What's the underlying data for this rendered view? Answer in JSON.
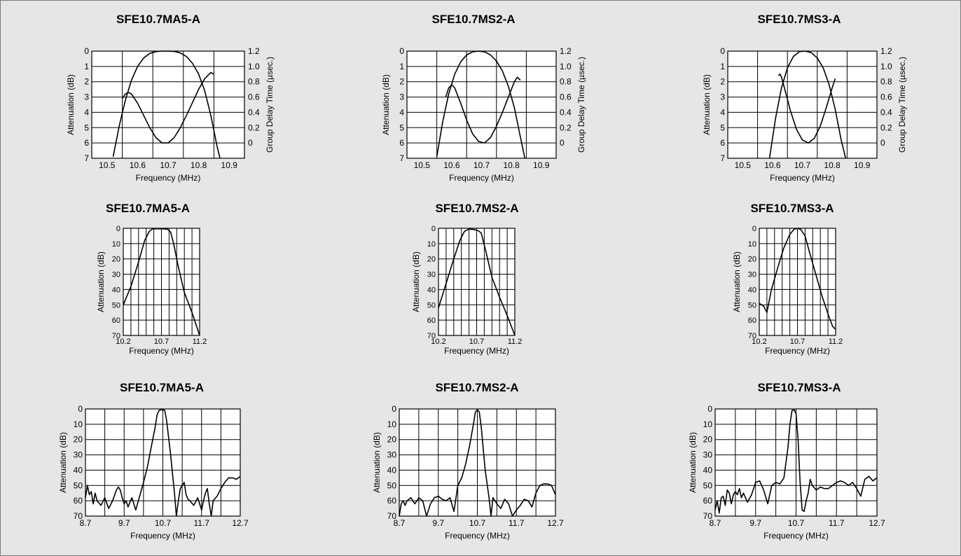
{
  "chart_data": [
    {
      "type": "line",
      "title": "SFE10.7MA5-A",
      "xlabel": "Frequency (MHz)",
      "ylabel": "Attenuation (dB)",
      "y2label": "Group Delay Time (µsec.)",
      "xlim": [
        10.45,
        10.95
      ],
      "ylim": [
        0,
        7
      ],
      "y2lim": [
        -0.2,
        1.2
      ],
      "xticks": [
        10.5,
        10.6,
        10.7,
        10.8,
        10.9
      ],
      "yticks": [
        0,
        1,
        2,
        3,
        4,
        5,
        6,
        7
      ],
      "y2ticks": [
        1.2,
        1.0,
        0.8,
        0.6,
        0.4,
        0.2,
        0
      ],
      "grid": true,
      "series": [
        {
          "axis": "y",
          "x": [
            10.52,
            10.54,
            10.56,
            10.58,
            10.6,
            10.62,
            10.64,
            10.66,
            10.68,
            10.7,
            10.72,
            10.74,
            10.76,
            10.78,
            10.8,
            10.82,
            10.84,
            10.86,
            10.87
          ],
          "y": [
            6.9,
            4.9,
            3.2,
            1.9,
            1.0,
            0.45,
            0.15,
            0.03,
            0.0,
            0.0,
            0.02,
            0.12,
            0.35,
            0.8,
            1.5,
            2.6,
            4.2,
            6.2,
            7.0
          ]
        },
        {
          "axis": "y2",
          "x": [
            10.55,
            10.56,
            10.57,
            10.58,
            10.6,
            10.62,
            10.64,
            10.66,
            10.68,
            10.7,
            10.72,
            10.74,
            10.76,
            10.78,
            10.8,
            10.82,
            10.84,
            10.85
          ],
          "y": [
            0.58,
            0.64,
            0.66,
            0.64,
            0.52,
            0.36,
            0.2,
            0.07,
            0.0,
            0.0,
            0.07,
            0.2,
            0.36,
            0.53,
            0.7,
            0.84,
            0.92,
            0.9
          ]
        }
      ]
    },
    {
      "type": "line",
      "title": "SFE10.7MS2-A",
      "xlabel": "Frequency (MHz)",
      "ylabel": "Attenuation (dB)",
      "y2label": "Group Delay Time (µsec.)",
      "xlim": [
        10.45,
        10.95
      ],
      "ylim": [
        0,
        7
      ],
      "y2lim": [
        -0.2,
        1.2
      ],
      "xticks": [
        10.5,
        10.6,
        10.7,
        10.8,
        10.9
      ],
      "yticks": [
        0,
        1,
        2,
        3,
        4,
        5,
        6,
        7
      ],
      "y2ticks": [
        1.2,
        1.0,
        0.8,
        0.6,
        0.4,
        0.2,
        0
      ],
      "grid": true,
      "series": [
        {
          "axis": "y",
          "x": [
            10.55,
            10.57,
            10.59,
            10.61,
            10.63,
            10.65,
            10.67,
            10.69,
            10.71,
            10.73,
            10.75,
            10.77,
            10.79,
            10.81,
            10.83,
            10.845
          ],
          "y": [
            6.9,
            4.6,
            2.8,
            1.5,
            0.7,
            0.25,
            0.05,
            0.0,
            0.05,
            0.25,
            0.65,
            1.3,
            2.3,
            3.7,
            5.6,
            7.0
          ]
        },
        {
          "axis": "y2",
          "x": [
            10.58,
            10.59,
            10.6,
            10.61,
            10.63,
            10.65,
            10.67,
            10.69,
            10.71,
            10.73,
            10.75,
            10.77,
            10.79,
            10.81,
            10.82,
            10.83
          ],
          "y": [
            0.6,
            0.72,
            0.76,
            0.72,
            0.52,
            0.3,
            0.12,
            0.02,
            0.0,
            0.07,
            0.22,
            0.4,
            0.6,
            0.8,
            0.86,
            0.82
          ]
        }
      ]
    },
    {
      "type": "line",
      "title": "SFE10.7MS3-A",
      "xlabel": "Frequency (MHz)",
      "ylabel": "Attenuation (dB)",
      "y2label": "Group Delay Time (µsec.)",
      "xlim": [
        10.45,
        10.95
      ],
      "ylim": [
        0,
        7
      ],
      "y2lim": [
        -0.2,
        1.2
      ],
      "xticks": [
        10.5,
        10.6,
        10.7,
        10.8,
        10.9
      ],
      "yticks": [
        0,
        1,
        2,
        3,
        4,
        5,
        6,
        7
      ],
      "y2ticks": [
        1.2,
        1.0,
        0.8,
        0.6,
        0.4,
        0.2,
        0
      ],
      "grid": true,
      "series": [
        {
          "axis": "y",
          "x": [
            10.59,
            10.61,
            10.63,
            10.65,
            10.67,
            10.69,
            10.71,
            10.73,
            10.75,
            10.77,
            10.79,
            10.81,
            10.83,
            10.845
          ],
          "y": [
            7.0,
            4.4,
            2.4,
            1.1,
            0.35,
            0.03,
            0.0,
            0.1,
            0.45,
            1.1,
            2.2,
            3.8,
            5.8,
            7.0
          ]
        },
        {
          "axis": "y2",
          "x": [
            10.62,
            10.625,
            10.63,
            10.64,
            10.66,
            10.68,
            10.7,
            10.72,
            10.74,
            10.76,
            10.78,
            10.8,
            10.81
          ],
          "y": [
            0.88,
            0.9,
            0.86,
            0.72,
            0.42,
            0.18,
            0.04,
            0.0,
            0.06,
            0.22,
            0.46,
            0.72,
            0.84
          ]
        }
      ]
    },
    {
      "type": "line",
      "title": "SFE10.7MA5-A",
      "xlabel": "Frequency (MHz)",
      "ylabel": "Attenuation (dB)",
      "xlim": [
        10.2,
        11.2
      ],
      "ylim": [
        0,
        70
      ],
      "xticks": [
        10.2,
        10.7,
        11.2
      ],
      "yticks": [
        0,
        10,
        20,
        30,
        40,
        50,
        60,
        70
      ],
      "grid": true,
      "series": [
        {
          "x": [
            10.2,
            10.3,
            10.4,
            10.48,
            10.54,
            10.58,
            10.62,
            10.7,
            10.78,
            10.82,
            10.86,
            10.92,
            11.0,
            11.1,
            11.2
          ],
          "y": [
            50,
            38,
            22,
            8,
            2,
            0.5,
            0.3,
            0.3,
            0.6,
            2.5,
            10,
            25,
            42,
            55,
            70
          ]
        }
      ]
    },
    {
      "type": "line",
      "title": "SFE10.7MS2-A",
      "xlabel": "Frequency (MHz)",
      "ylabel": "Attenuation (dB)",
      "xlim": [
        10.2,
        11.2
      ],
      "ylim": [
        0,
        70
      ],
      "xticks": [
        10.2,
        10.7,
        11.2
      ],
      "yticks": [
        0,
        10,
        20,
        30,
        40,
        50,
        60,
        70
      ],
      "grid": true,
      "series": [
        {
          "x": [
            10.2,
            10.3,
            10.4,
            10.48,
            10.54,
            10.6,
            10.66,
            10.72,
            10.76,
            10.82,
            10.9,
            11.0,
            11.1,
            11.2
          ],
          "y": [
            52,
            36,
            20,
            8,
            2,
            0.4,
            0.8,
            1.6,
            3,
            15,
            32,
            45,
            57,
            70
          ]
        }
      ]
    },
    {
      "type": "line",
      "title": "SFE10.7MS3-A",
      "xlabel": "Frequency (MHz)",
      "ylabel": "Attenuation (dB)",
      "xlim": [
        10.2,
        11.2
      ],
      "ylim": [
        0,
        70
      ],
      "xticks": [
        10.2,
        10.7,
        11.2
      ],
      "yticks": [
        0,
        10,
        20,
        30,
        40,
        50,
        60,
        70
      ],
      "grid": true,
      "series": [
        {
          "x": [
            10.2,
            10.26,
            10.3,
            10.36,
            10.44,
            10.52,
            10.6,
            10.66,
            10.7,
            10.74,
            10.8,
            10.86,
            10.94,
            11.02,
            11.1,
            11.16,
            11.2
          ],
          "y": [
            49,
            51,
            55,
            40,
            26,
            13,
            4,
            0.4,
            0.1,
            0.6,
            5,
            16,
            30,
            44,
            56,
            64,
            66
          ]
        }
      ]
    },
    {
      "type": "line",
      "title": "SFE10.7MA5-A",
      "xlabel": "Frequency (MHz)",
      "ylabel": "Attenuation (dB)",
      "xlim": [
        8.7,
        12.7
      ],
      "ylim": [
        0,
        70
      ],
      "xticks": [
        8.7,
        9.7,
        10.7,
        11.7,
        12.7
      ],
      "yticks": [
        0,
        10,
        20,
        30,
        40,
        50,
        60,
        70
      ],
      "grid": true,
      "series": [
        {
          "x": [
            8.7,
            8.75,
            8.8,
            8.85,
            8.9,
            8.95,
            9.0,
            9.1,
            9.2,
            9.3,
            9.4,
            9.5,
            9.55,
            9.6,
            9.65,
            9.7,
            9.75,
            9.8,
            9.85,
            9.9,
            10.0,
            10.1,
            10.2,
            10.3,
            10.4,
            10.5,
            10.55,
            10.6,
            10.65,
            10.7,
            10.75,
            10.8,
            10.9,
            11.0,
            11.05,
            11.1,
            11.15,
            11.2,
            11.25,
            11.3,
            11.35,
            11.4,
            11.5,
            11.6,
            11.7,
            11.75,
            11.8,
            11.85,
            11.9,
            11.95,
            12.0,
            12.1,
            12.2,
            12.3,
            12.4,
            12.5,
            12.6,
            12.7
          ],
          "y": [
            58,
            50,
            56,
            54,
            62,
            55,
            60,
            63,
            58,
            65,
            60,
            53,
            51,
            53,
            58,
            62,
            60,
            64,
            61,
            58,
            66,
            57,
            48,
            38,
            25,
            12,
            4,
            1,
            0.5,
            0.5,
            1,
            8,
            30,
            55,
            71,
            60,
            52,
            50,
            48,
            56,
            59,
            60,
            63,
            58,
            66,
            60,
            55,
            52,
            62,
            70,
            60,
            57,
            52,
            48,
            45,
            45,
            46,
            44
          ]
        }
      ]
    },
    {
      "type": "line",
      "title": "SFE10.7MS2-A",
      "xlabel": "Frequency (MHz)",
      "ylabel": "Attenuation (dB)",
      "xlim": [
        8.7,
        12.7
      ],
      "ylim": [
        0,
        70
      ],
      "xticks": [
        8.7,
        9.7,
        10.7,
        11.7,
        12.7
      ],
      "yticks": [
        0,
        10,
        20,
        30,
        40,
        50,
        60,
        70
      ],
      "grid": true,
      "series": [
        {
          "x": [
            8.7,
            8.75,
            8.8,
            8.85,
            8.9,
            9.0,
            9.1,
            9.2,
            9.3,
            9.4,
            9.5,
            9.6,
            9.7,
            9.8,
            9.9,
            10.0,
            10.1,
            10.2,
            10.3,
            10.4,
            10.5,
            10.6,
            10.65,
            10.7,
            10.75,
            10.8,
            10.9,
            11.0,
            11.05,
            11.1,
            11.2,
            11.3,
            11.4,
            11.5,
            11.6,
            11.7,
            11.8,
            11.9,
            12.0,
            12.1,
            12.2,
            12.3,
            12.4,
            12.5,
            12.6,
            12.7
          ],
          "y": [
            70,
            62,
            60,
            63,
            60,
            58,
            62,
            58,
            60,
            70,
            62,
            58,
            57,
            59,
            60,
            58,
            67,
            50,
            45,
            36,
            24,
            10,
            2,
            0.5,
            2,
            12,
            40,
            58,
            70,
            58,
            62,
            65,
            59,
            62,
            70,
            66,
            63,
            59,
            60,
            64,
            55,
            50,
            49,
            49,
            50,
            56
          ]
        }
      ]
    },
    {
      "type": "line",
      "title": "SFE10.7MS3-A",
      "xlabel": "Frequency (MHz)",
      "ylabel": "Attenuation (dB)",
      "xlim": [
        8.7,
        12.7
      ],
      "ylim": [
        0,
        70
      ],
      "xticks": [
        8.7,
        9.7,
        10.7,
        11.7,
        12.7
      ],
      "yticks": [
        0,
        10,
        20,
        30,
        40,
        50,
        60,
        70
      ],
      "grid": true,
      "series": [
        {
          "x": [
            8.7,
            8.75,
            8.8,
            8.85,
            8.9,
            8.95,
            9.0,
            9.05,
            9.1,
            9.15,
            9.2,
            9.25,
            9.3,
            9.35,
            9.4,
            9.5,
            9.6,
            9.7,
            9.8,
            9.9,
            10.0,
            10.1,
            10.2,
            10.3,
            10.4,
            10.5,
            10.55,
            10.6,
            10.65,
            10.7,
            10.75,
            10.8,
            10.85,
            10.9,
            10.95,
            11.0,
            11.05,
            11.1,
            11.2,
            11.3,
            11.4,
            11.5,
            11.6,
            11.7,
            11.8,
            11.9,
            12.0,
            12.1,
            12.2,
            12.3,
            12.4,
            12.5,
            12.6,
            12.7
          ],
          "y": [
            66,
            60,
            68,
            58,
            57,
            63,
            53,
            55,
            62,
            56,
            54,
            56,
            52,
            58,
            55,
            61,
            56,
            48,
            47,
            53,
            62,
            50,
            48,
            49,
            45,
            25,
            10,
            1,
            0.5,
            3,
            20,
            48,
            66,
            67,
            60,
            55,
            46,
            50,
            53,
            51,
            52,
            52,
            50,
            48,
            47,
            48,
            50,
            48,
            52,
            57,
            46,
            44,
            47,
            45
          ]
        }
      ]
    }
  ]
}
